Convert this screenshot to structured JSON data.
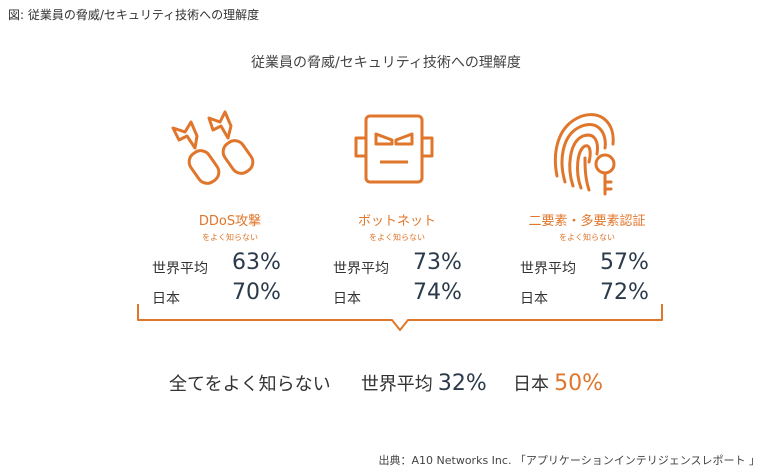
{
  "caption": "図: 従業員の脅威/セキュリティ技術への理解度",
  "title": "従業員の脅威/セキュリティ技術への理解度",
  "accent_color": "#e0762b",
  "columns": [
    {
      "icon": "ddos-missile-icon",
      "name": "DDoS攻撃",
      "sub": "をよく知らない",
      "world_label": "世界平均",
      "world_value": "63%",
      "japan_label": "日本",
      "japan_value": "70%"
    },
    {
      "icon": "bot-face-icon",
      "name": "ボットネット",
      "sub": "をよく知らない",
      "world_label": "世界平均",
      "world_value": "73%",
      "japan_label": "日本",
      "japan_value": "74%"
    },
    {
      "icon": "fingerprint-key-icon",
      "name": "二要素・多要素認証",
      "sub": "をよく知らない",
      "world_label": "世界平均",
      "world_value": "57%",
      "japan_label": "日本",
      "japan_value": "72%"
    }
  ],
  "summary": {
    "text": "全てをよく知らない",
    "world_label": "世界平均",
    "world_value": "32%",
    "japan_label": "日本",
    "japan_value": "50%"
  },
  "source": "出典：A10 Networks Inc. 「アプリケーションインテリジェンスレポート 」"
}
